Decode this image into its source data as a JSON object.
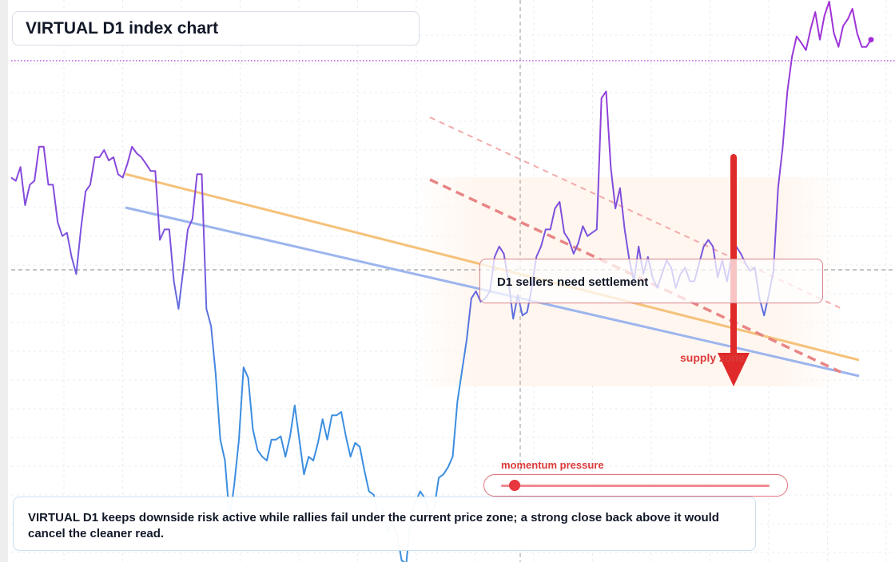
{
  "header": {
    "title": "VIRTUAL D1 index chart"
  },
  "callout": {
    "text": "D1 sellers need settlement"
  },
  "zone": {
    "label": "supply zone"
  },
  "momentum": {
    "label": "momentum pressure",
    "level": 0.05
  },
  "note": {
    "text": "VIRTUAL D1 keeps downside risk active while rallies fail under the current price zone; a strong close back above it would cancel the cleaner read."
  },
  "colors": {
    "price_low": "#3b8ee0",
    "price_high": "#a32fd6",
    "arrow": "#e02a2a",
    "trend_orange": "#f5c27a",
    "trend_blue": "#9db5ee",
    "channel": "#e88585",
    "meter": "#e8363f"
  },
  "chart_data": {
    "type": "line",
    "title": "VIRTUAL D1 index chart",
    "xlim": [
      0,
      182
    ],
    "ylim": [
      0,
      100
    ],
    "grid": true,
    "series": [
      {
        "values": [
          69.4,
          68.8,
          71.3,
          64.4,
          68.1,
          68.8,
          75.0,
          75.0,
          68.1,
          68.1,
          61.3,
          58.8,
          59.4,
          55.0,
          51.9,
          60.0,
          66.9,
          68.1,
          73.1,
          73.1,
          74.4,
          72.5,
          73.1,
          70.0,
          69.4,
          71.9,
          75.0,
          73.8,
          73.1,
          71.9,
          70.6,
          70.6,
          58.1,
          60.0,
          60.0,
          50.6,
          45.6,
          52.5,
          60.0,
          61.9,
          70.0,
          70.0,
          45.6,
          42.5,
          33.8,
          21.9,
          18.1,
          7.5,
          13.8,
          21.9,
          35.0,
          33.1,
          23.8,
          20.0,
          18.8,
          18.1,
          21.9,
          21.9,
          22.5,
          18.8,
          22.5,
          28.1,
          21.9,
          15.6,
          18.8,
          18.1,
          21.3,
          25.6,
          21.9,
          26.3,
          26.3,
          26.9,
          22.5,
          18.8,
          21.3,
          20.6,
          16.3,
          12.5,
          11.9,
          7.5,
          9.4,
          5.0,
          6.9,
          5.0,
          0.0,
          -0.6,
          8.1,
          10.6,
          12.5,
          11.3,
          8.1,
          9.4,
          15.0,
          15.6,
          16.9,
          18.8,
          28.8,
          34.4,
          40.0,
          47.5,
          48.8,
          46.9,
          47.5,
          48.8,
          55.0,
          56.9,
          55.6,
          50.6,
          43.8,
          48.1,
          44.4,
          45.0,
          49.4,
          55.0,
          56.9,
          60.0,
          60.0,
          63.8,
          65.0,
          59.4,
          58.1,
          55.6,
          57.5,
          60.6,
          58.8,
          59.4,
          60.0,
          83.8,
          85.0,
          71.3,
          63.8,
          67.5,
          60.0,
          54.4,
          50.6,
          56.9,
          51.9,
          55.0,
          51.3,
          49.4,
          51.9,
          54.4,
          53.1,
          49.4,
          51.9,
          53.1,
          50.6,
          50.6,
          53.8,
          56.9,
          58.1,
          56.9,
          51.3,
          54.4,
          50.6,
          55.0,
          56.9,
          55.6,
          53.8,
          52.5,
          53.1,
          47.5,
          44.4,
          48.1,
          52.5,
          67.5,
          75.0,
          85.0,
          91.3,
          95.0,
          93.8,
          92.5,
          96.3,
          99.4,
          94.4,
          98.8,
          101.3,
          95.6,
          93.1,
          96.9,
          98.1,
          100.0,
          95.6,
          93.1,
          93.1,
          94.4
        ]
      }
    ]
  }
}
